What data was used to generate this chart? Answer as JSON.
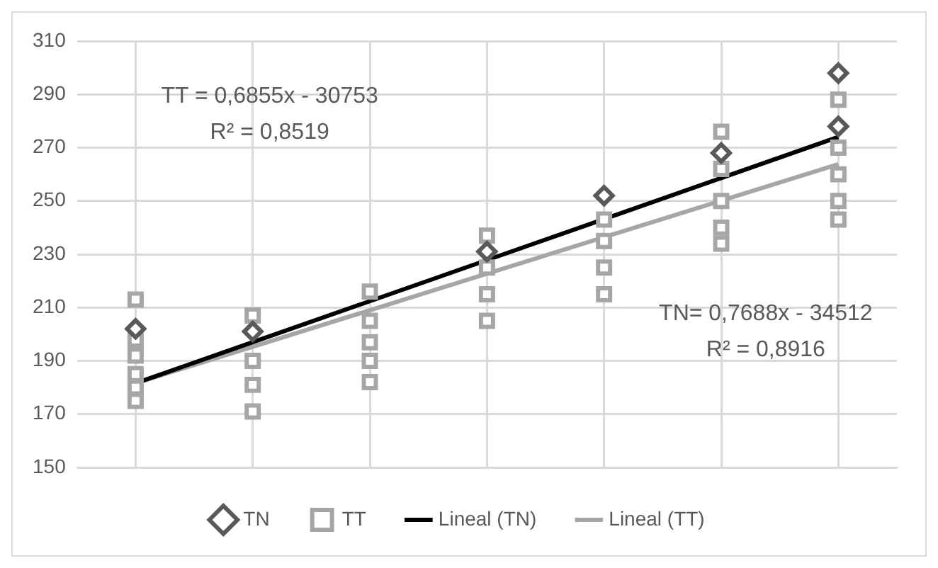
{
  "chart_data": {
    "type": "scatter",
    "categories": [
      null,
      null,
      null,
      null,
      null,
      null,
      null
    ],
    "ylim": [
      150,
      310
    ],
    "yticks": [
      150,
      170,
      190,
      210,
      230,
      250,
      270,
      290,
      310
    ],
    "grid": true,
    "tick_labels": "y",
    "legend": "bottom",
    "series": [
      {
        "name": "TN",
        "marker": "diamond",
        "color": "#595959",
        "values": [
          202,
          201,
          null,
          231,
          252,
          268,
          298
        ]
      },
      {
        "marker": "diamond",
        "color": "#595959",
        "values": [
          null,
          null,
          null,
          null,
          null,
          null,
          278
        ]
      },
      {
        "name": "TT",
        "marker": "square",
        "color": "#a6a6a6",
        "values": [
          213,
          207,
          216,
          237,
          243,
          276,
          288
        ]
      },
      {
        "marker": "square",
        "color": "#a6a6a6",
        "values": [
          198,
          null,
          205,
          225,
          235,
          262,
          270
        ]
      },
      {
        "marker": "square",
        "color": "#a6a6a6",
        "values": [
          192,
          190,
          197,
          215,
          225,
          250,
          260
        ]
      },
      {
        "marker": "square",
        "color": "#a6a6a6",
        "values": [
          185,
          181,
          190,
          205,
          215,
          240,
          250
        ]
      },
      {
        "marker": "square",
        "color": "#a6a6a6",
        "values": [
          180,
          171,
          182,
          null,
          null,
          234,
          243
        ]
      },
      {
        "marker": "square",
        "color": "#a6a6a6",
        "values": [
          175,
          null,
          null,
          null,
          null,
          null,
          null
        ]
      },
      {
        "name": "Lineal (TN)",
        "type": "line",
        "marker": "none",
        "color": "#000000",
        "values": [
          181.6,
          197.0,
          212.4,
          227.8,
          243.2,
          258.6,
          274.0
        ]
      },
      {
        "name": "Lineal (TT)",
        "type": "line",
        "marker": "none",
        "color": "#a6a6a6",
        "values": [
          181.6,
          195.3,
          209.0,
          222.7,
          236.4,
          250.1,
          263.8
        ]
      }
    ],
    "annotations": [
      "TT = 0,6855x - 30753",
      "R² = 0,8519",
      "TN= 0,7688x - 34512",
      "R² = 0,8916"
    ]
  }
}
